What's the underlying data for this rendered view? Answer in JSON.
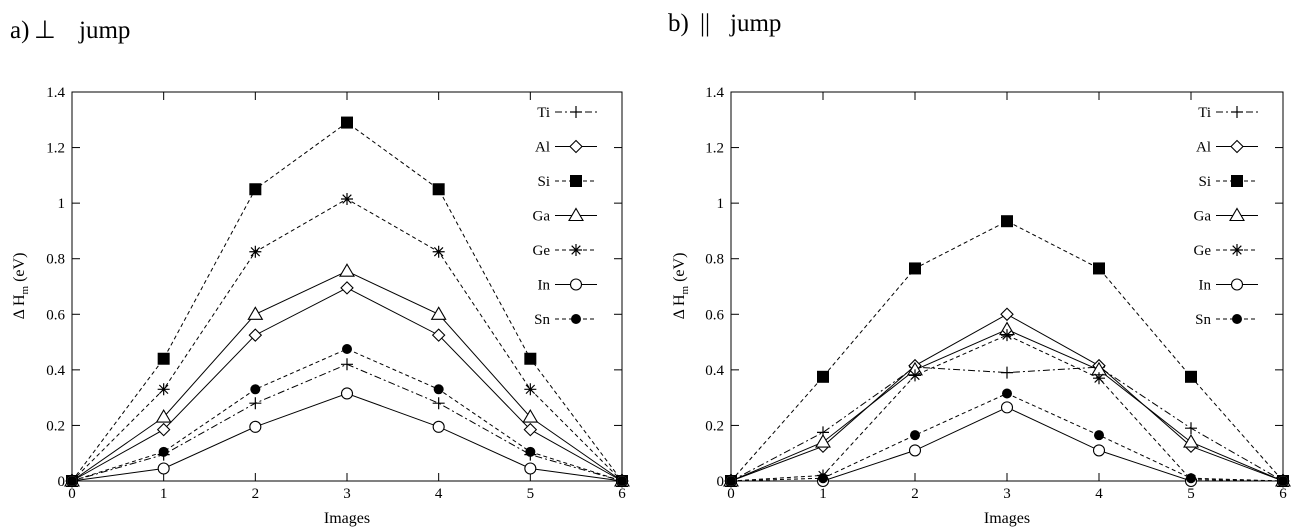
{
  "chart_data": [
    {
      "type": "line",
      "panel_label": "a)",
      "panel_symbol": "⊥",
      "panel_word": "jump",
      "xlabel": "Images",
      "ylabel_main": "Δ H",
      "ylabel_sub": "m",
      "ylabel_unit": "(eV)",
      "x": [
        0,
        1,
        2,
        3,
        4,
        5,
        6
      ],
      "xlim": [
        0,
        6
      ],
      "ylim": [
        0,
        1.4
      ],
      "xticks": [
        "0",
        "1",
        "2",
        "3",
        "4",
        "5",
        "6"
      ],
      "yticks": [
        "0",
        "0.2",
        "0.4",
        "0.6",
        "0.8",
        "1",
        "1.2",
        "1.4"
      ],
      "grid": false,
      "legend_position": "top-right",
      "series": [
        {
          "name": "Ti",
          "marker": "plus",
          "line": "dashdot",
          "values": [
            0,
            0.095,
            0.28,
            0.42,
            0.28,
            0.095,
            0
          ]
        },
        {
          "name": "Al",
          "marker": "diamond-open",
          "line": "solid",
          "values": [
            0,
            0.185,
            0.525,
            0.695,
            0.525,
            0.185,
            0
          ]
        },
        {
          "name": "Si",
          "marker": "square-filled",
          "line": "dashed",
          "values": [
            0,
            0.44,
            1.05,
            1.29,
            1.05,
            0.44,
            0
          ]
        },
        {
          "name": "Ga",
          "marker": "triangle-open",
          "line": "solid",
          "values": [
            0,
            0.23,
            0.6,
            0.755,
            0.6,
            0.23,
            0
          ]
        },
        {
          "name": "Ge",
          "marker": "asterisk",
          "line": "dashed",
          "values": [
            0,
            0.33,
            0.825,
            1.015,
            0.825,
            0.33,
            0
          ]
        },
        {
          "name": "In",
          "marker": "circle-open",
          "line": "solid",
          "values": [
            0,
            0.045,
            0.195,
            0.315,
            0.195,
            0.045,
            0
          ]
        },
        {
          "name": "Sn",
          "marker": "circle-filled",
          "line": "dashed",
          "values": [
            0,
            0.105,
            0.33,
            0.475,
            0.33,
            0.105,
            0
          ]
        }
      ]
    },
    {
      "type": "line",
      "panel_label": "b)",
      "panel_symbol": "||",
      "panel_word": "jump",
      "xlabel": "Images",
      "ylabel_main": "Δ H",
      "ylabel_sub": "m",
      "ylabel_unit": "(eV)",
      "x": [
        0,
        1,
        2,
        3,
        4,
        5,
        6
      ],
      "xlim": [
        0,
        6
      ],
      "ylim": [
        0,
        1.4
      ],
      "xticks": [
        "0",
        "1",
        "2",
        "3",
        "4",
        "5",
        "6"
      ],
      "yticks": [
        "0",
        "0.2",
        "0.4",
        "0.6",
        "0.8",
        "1",
        "1.2",
        "1.4"
      ],
      "grid": false,
      "legend_position": "top-right",
      "series": [
        {
          "name": "Ti",
          "marker": "plus",
          "line": "dashdot",
          "values": [
            0,
            0.175,
            0.41,
            0.39,
            0.41,
            0.19,
            0
          ]
        },
        {
          "name": "Al",
          "marker": "diamond-open",
          "line": "solid",
          "values": [
            0,
            0.125,
            0.415,
            0.6,
            0.415,
            0.125,
            0
          ]
        },
        {
          "name": "Si",
          "marker": "square-filled",
          "line": "dashed",
          "values": [
            0,
            0.375,
            0.765,
            0.935,
            0.765,
            0.375,
            0
          ]
        },
        {
          "name": "Ga",
          "marker": "triangle-open",
          "line": "solid",
          "values": [
            0,
            0.14,
            0.4,
            0.545,
            0.4,
            0.14,
            0
          ]
        },
        {
          "name": "Ge",
          "marker": "asterisk",
          "line": "dashed",
          "values": [
            0,
            0.02,
            0.38,
            0.525,
            0.37,
            0.005,
            0
          ]
        },
        {
          "name": "In",
          "marker": "circle-open",
          "line": "solid",
          "values": [
            0,
            0.0,
            0.11,
            0.265,
            0.11,
            0.0,
            0
          ]
        },
        {
          "name": "Sn",
          "marker": "circle-filled",
          "line": "dashed",
          "values": [
            0,
            0.01,
            0.165,
            0.315,
            0.165,
            0.01,
            0
          ]
        }
      ]
    }
  ]
}
